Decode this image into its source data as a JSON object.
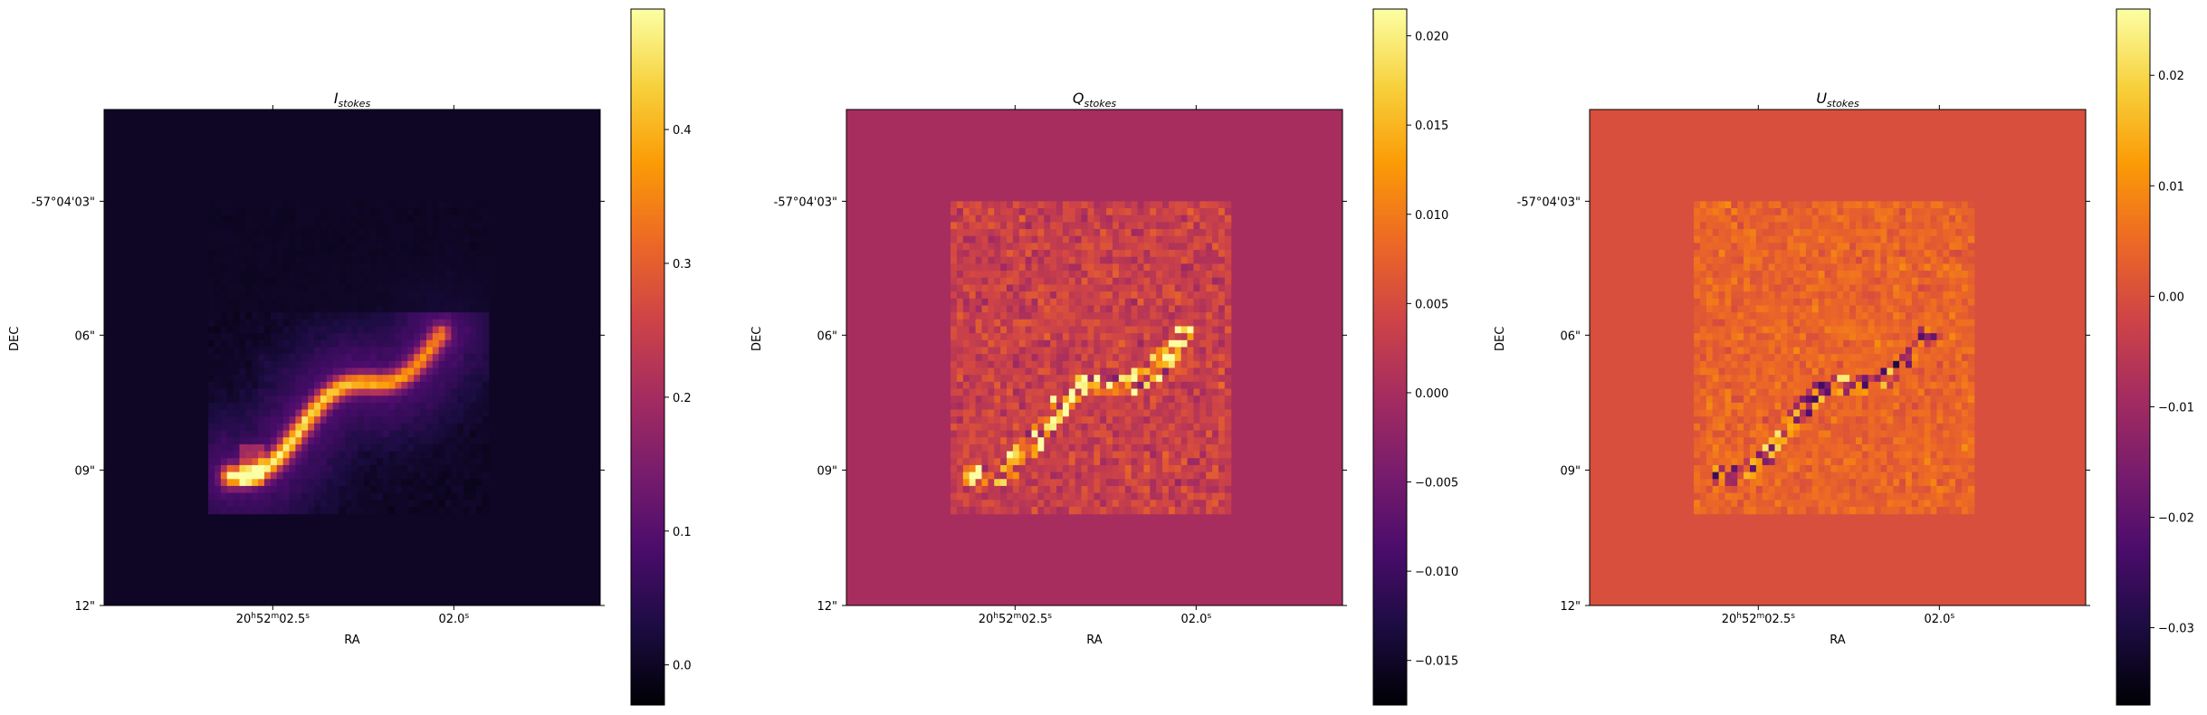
{
  "figure": {
    "colormap": "inferno",
    "colormap_stops": [
      "#000004",
      "#1b0c41",
      "#4a0c6b",
      "#781c6d",
      "#a52c60",
      "#cf4446",
      "#ed6925",
      "#fb9b06",
      "#f7d13d",
      "#fcffa4"
    ]
  },
  "chart_data": [
    {
      "type": "heatmap",
      "title": "I",
      "title_subscript": "stokes",
      "xlabel": "RA",
      "ylabel": "DEC",
      "x_ticks": [
        {
          "label": "20h52m02.5s",
          "main": "20",
          "sup1": "h",
          "mid": "52",
          "sup2": "m",
          "tail": "02.5",
          "sup3": "s"
        },
        {
          "label": "02.0s",
          "main": "02.0",
          "sup3": "s"
        }
      ],
      "y_ticks": [
        "-57°04'03\"",
        "06\"",
        "09\"",
        "12\""
      ],
      "colorbar": {
        "vmin": -0.03,
        "vmax": 0.49,
        "ticks": [
          0.0,
          0.1,
          0.2,
          0.3,
          0.4
        ],
        "tick_labels": [
          "0.0",
          "0.1",
          "0.2",
          "0.3",
          "0.4"
        ]
      },
      "background_value": 0.0,
      "image_region_fraction": {
        "description": "data present in central square, zeros elsewhere"
      },
      "features": "bright curved filament running from lower-left (peak ~0.45) toward upper-right (~0.25), diffuse emission ~0.05-0.1"
    },
    {
      "type": "heatmap",
      "title": "Q",
      "title_subscript": "stokes",
      "xlabel": "RA",
      "ylabel": "DEC",
      "x_ticks": [
        {
          "label": "20h52m02.5s",
          "main": "20",
          "sup1": "h",
          "mid": "52",
          "sup2": "m",
          "tail": "02.5",
          "sup3": "s"
        },
        {
          "label": "02.0s",
          "main": "02.0",
          "sup3": "s"
        }
      ],
      "y_ticks": [
        "-57°04'03\"",
        "06\"",
        "09\"",
        "12\""
      ],
      "colorbar": {
        "vmin": -0.0175,
        "vmax": 0.0215,
        "ticks": [
          -0.015,
          -0.01,
          -0.005,
          0.0,
          0.005,
          0.01,
          0.015,
          0.02
        ],
        "tick_labels": [
          "−0.015",
          "−0.010",
          "−0.005",
          "0.000",
          "0.005",
          "0.010",
          "0.015",
          "0.020"
        ]
      },
      "background_value": 0.0,
      "features": "noisy polarization signal, positive peaks ~0.02 along the filament with adjacent negative pixels ~-0.015"
    },
    {
      "type": "heatmap",
      "title": "U",
      "title_subscript": "stokes",
      "xlabel": "RA",
      "ylabel": "DEC",
      "x_ticks": [
        {
          "label": "20h52m02.5s",
          "main": "20",
          "sup1": "h",
          "mid": "52",
          "sup2": "m",
          "tail": "02.5",
          "sup3": "s"
        },
        {
          "label": "02.0s",
          "main": "02.0",
          "sup3": "s"
        }
      ],
      "y_ticks": [
        "-57°04'03\"",
        "06\"",
        "09\"",
        "12\""
      ],
      "colorbar": {
        "vmin": -0.037,
        "vmax": 0.026,
        "ticks": [
          -0.03,
          -0.02,
          -0.01,
          0.0,
          0.01,
          0.02
        ],
        "tick_labels": [
          "−0.03",
          "−0.02",
          "−0.01",
          "0.00",
          "0.01",
          "0.02"
        ]
      },
      "background_value": 0.0,
      "features": "mostly near-zero to slightly positive, negative dark pixels ~-0.03 along the filament"
    }
  ]
}
